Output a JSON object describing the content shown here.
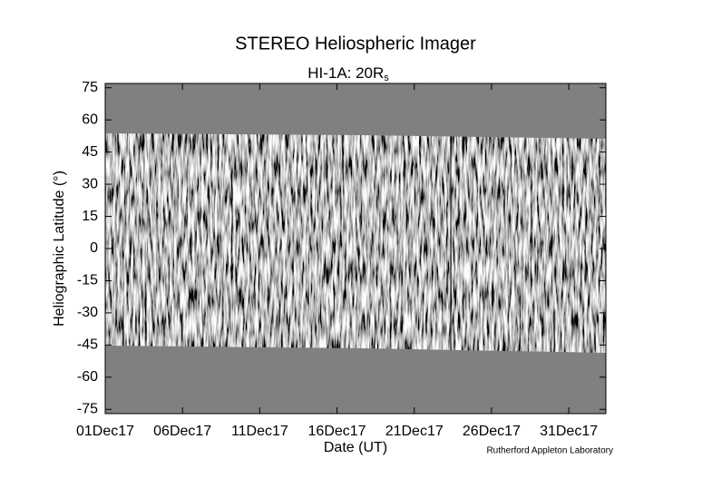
{
  "chart_data": {
    "type": "image",
    "title": "STEREO Heliospheric Imager",
    "subtitle": "HI-1A: 20R",
    "subtitle_subscript": "s",
    "xlabel": "Date (UT)",
    "ylabel": "Heliographic Latitude (°)",
    "credit": "Rutherford Appleton Laboratory",
    "xlim": [
      1,
      33.4
    ],
    "xticks": [
      {
        "value": 1,
        "label": "01Dec17"
      },
      {
        "value": 6,
        "label": "06Dec17"
      },
      {
        "value": 11,
        "label": "11Dec17"
      },
      {
        "value": 16,
        "label": "16Dec17"
      },
      {
        "value": 21,
        "label": "21Dec17"
      },
      {
        "value": 26,
        "label": "26Dec17"
      },
      {
        "value": 31,
        "label": "31Dec17"
      }
    ],
    "ylim": [
      -77,
      77
    ],
    "yticks": [
      75,
      60,
      45,
      30,
      15,
      0,
      -15,
      -30,
      -45,
      -60,
      -75
    ],
    "background_color": "#808080"
  }
}
